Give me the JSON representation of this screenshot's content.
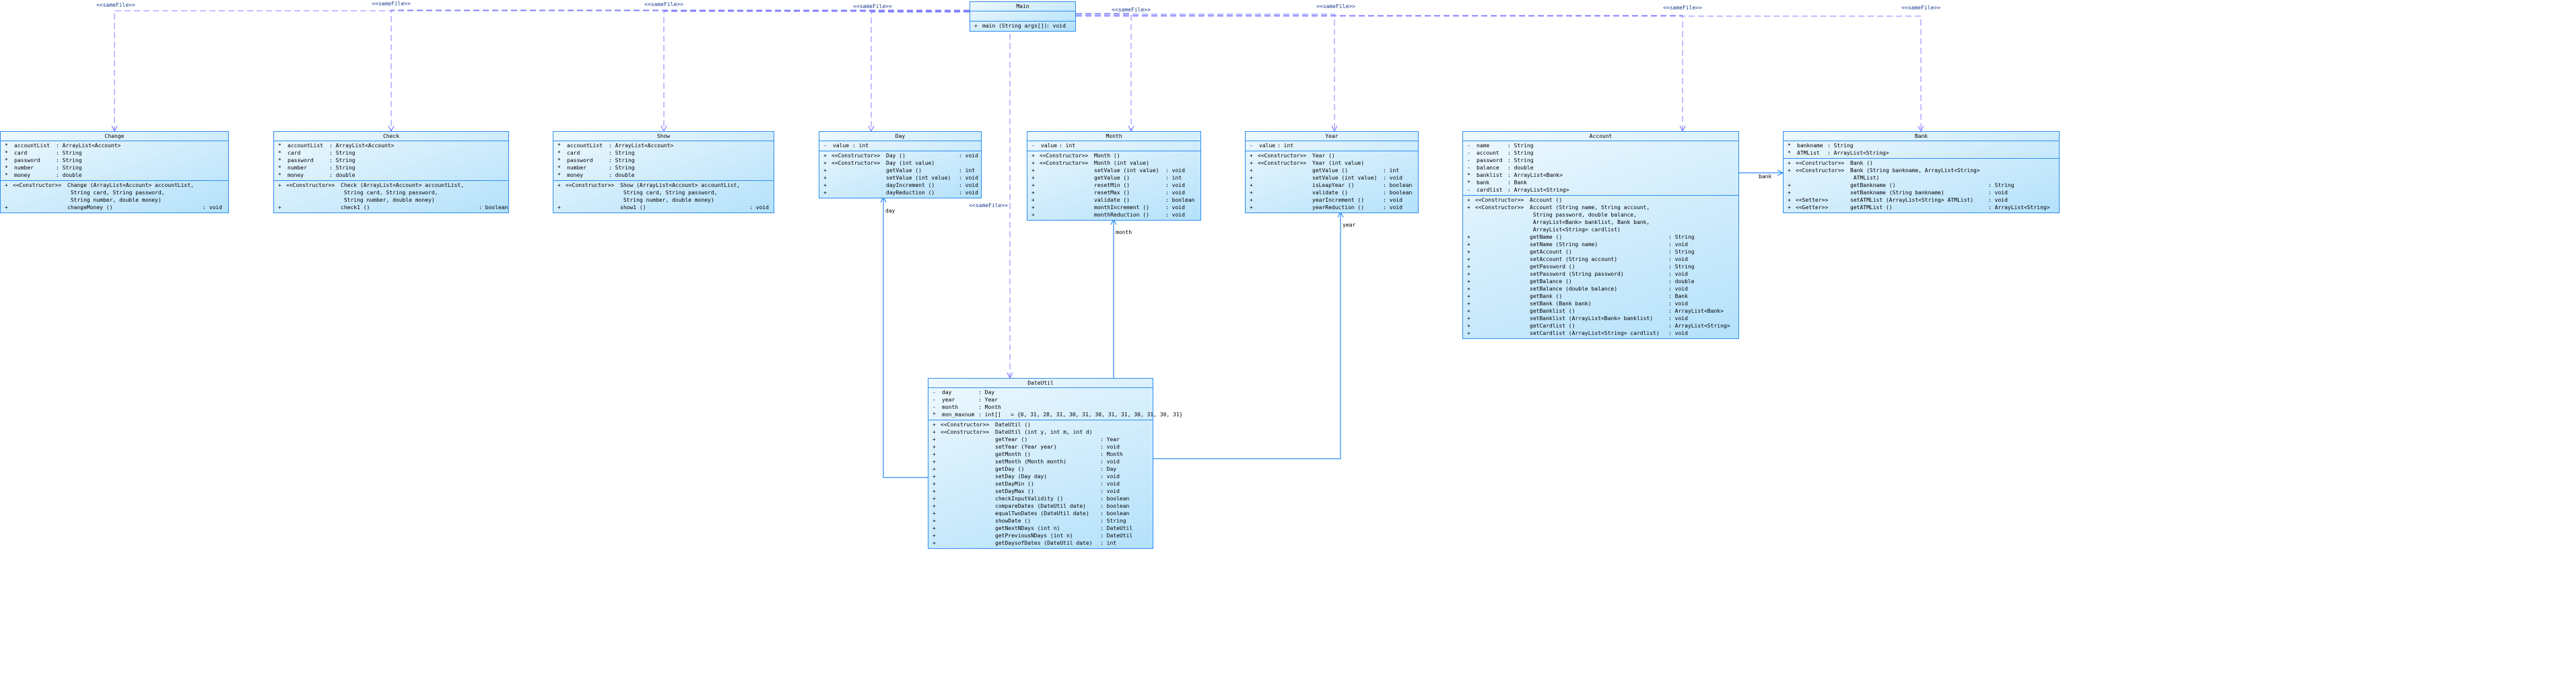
{
  "colors": {
    "border": "#2a8df0",
    "dependency": "#8080ff",
    "association": "#2a8df0",
    "fill_light": "#eef8fe",
    "fill_dark": "#b4e1fb",
    "stereotype_text": "#1a3a8a"
  },
  "relations": {
    "stereotype": "<<sameFile>>",
    "associations": [
      {
        "label": "day"
      },
      {
        "label": "month"
      },
      {
        "label": "year"
      },
      {
        "label": "bank"
      }
    ]
  },
  "classes": [
    {
      "name": "Main",
      "attributes": [],
      "operations": [
        {
          "vis": "+",
          "stereo": "",
          "sig": "main (String args[])",
          "ret": "void"
        }
      ]
    },
    {
      "name": "Change",
      "attributes": [
        {
          "vis": "*",
          "name": "accountList",
          "type": "ArrayList<Account>"
        },
        {
          "vis": "*",
          "name": "card",
          "type": "String"
        },
        {
          "vis": "*",
          "name": "password",
          "type": "String"
        },
        {
          "vis": "*",
          "name": "number",
          "type": "String"
        },
        {
          "vis": "*",
          "name": "money",
          "type": "double"
        }
      ],
      "operations": [
        {
          "vis": "+",
          "stereo": "<<Constructor>>",
          "sig": "Change (ArrayList<Account> accountList,\n String card, String password,\n String number, double money)",
          "ret": ""
        },
        {
          "vis": "+",
          "stereo": "",
          "sig": "changeMoney ()",
          "ret": "void"
        }
      ]
    },
    {
      "name": "Check",
      "attributes": [
        {
          "vis": "*",
          "name": "accountList",
          "type": "ArrayList<Account>"
        },
        {
          "vis": "*",
          "name": "card",
          "type": "String"
        },
        {
          "vis": "*",
          "name": "password",
          "type": "String"
        },
        {
          "vis": "*",
          "name": "number",
          "type": "String"
        },
        {
          "vis": "*",
          "name": "money",
          "type": "double"
        }
      ],
      "operations": [
        {
          "vis": "+",
          "stereo": "<<Constructor>>",
          "sig": "Check (ArrayList<Account> accountList,\n String card, String password,\n String number, double money)",
          "ret": ""
        },
        {
          "vis": "+",
          "stereo": "",
          "sig": "check1 ()",
          "ret": "boolean"
        }
      ]
    },
    {
      "name": "Show",
      "attributes": [
        {
          "vis": "*",
          "name": "accountList",
          "type": "ArrayList<Account>"
        },
        {
          "vis": "*",
          "name": "card",
          "type": "String"
        },
        {
          "vis": "*",
          "name": "password",
          "type": "String"
        },
        {
          "vis": "*",
          "name": "number",
          "type": "String"
        },
        {
          "vis": "*",
          "name": "money",
          "type": "double"
        }
      ],
      "operations": [
        {
          "vis": "+",
          "stereo": "<<Constructor>>",
          "sig": "Show (ArrayList<Account> accountList,\n String card, String password,\n String number, double money)",
          "ret": ""
        },
        {
          "vis": "+",
          "stereo": "",
          "sig": "show1 ()",
          "ret": "void"
        }
      ]
    },
    {
      "name": "Day",
      "attributes": [
        {
          "vis": "-",
          "name": "value",
          "type": "int"
        }
      ],
      "operations": [
        {
          "vis": "+",
          "stereo": "<<Constructor>>",
          "sig": "Day ()",
          "ret": "void"
        },
        {
          "vis": "+",
          "stereo": "<<Constructor>>",
          "sig": "Day (int value)",
          "ret": ""
        },
        {
          "vis": "+",
          "stereo": "",
          "sig": "getValue ()",
          "ret": "int"
        },
        {
          "vis": "+",
          "stereo": "",
          "sig": "setValue (int value)",
          "ret": "void"
        },
        {
          "vis": "+",
          "stereo": "",
          "sig": "dayIncrement ()",
          "ret": "void"
        },
        {
          "vis": "+",
          "stereo": "",
          "sig": "dayReduction ()",
          "ret": "void"
        }
      ]
    },
    {
      "name": "Month",
      "attributes": [
        {
          "vis": "-",
          "name": "value",
          "type": "int"
        }
      ],
      "operations": [
        {
          "vis": "+",
          "stereo": "<<Constructor>>",
          "sig": "Month ()",
          "ret": ""
        },
        {
          "vis": "+",
          "stereo": "<<Constructor>>",
          "sig": "Month (int value)",
          "ret": ""
        },
        {
          "vis": "+",
          "stereo": "",
          "sig": "setValue (int value)",
          "ret": "void"
        },
        {
          "vis": "+",
          "stereo": "",
          "sig": "getValue ()",
          "ret": "int"
        },
        {
          "vis": "+",
          "stereo": "",
          "sig": "resetMin ()",
          "ret": "void"
        },
        {
          "vis": "+",
          "stereo": "",
          "sig": "resetMax ()",
          "ret": "void"
        },
        {
          "vis": "+",
          "stereo": "",
          "sig": "validate ()",
          "ret": "boolean"
        },
        {
          "vis": "+",
          "stereo": "",
          "sig": "monthIncrement ()",
          "ret": "void"
        },
        {
          "vis": "+",
          "stereo": "",
          "sig": "monthReduction ()",
          "ret": "void"
        }
      ]
    },
    {
      "name": "Year",
      "attributes": [
        {
          "vis": "-",
          "name": "value",
          "type": "int"
        }
      ],
      "operations": [
        {
          "vis": "+",
          "stereo": "<<Constructor>>",
          "sig": "Year ()",
          "ret": ""
        },
        {
          "vis": "+",
          "stereo": "<<Constructor>>",
          "sig": "Year (int value)",
          "ret": ""
        },
        {
          "vis": "+",
          "stereo": "",
          "sig": "getValue ()",
          "ret": "int"
        },
        {
          "vis": "+",
          "stereo": "",
          "sig": "setValue (int value)",
          "ret": "void"
        },
        {
          "vis": "+",
          "stereo": "",
          "sig": "isLeapYear ()",
          "ret": "boolean"
        },
        {
          "vis": "+",
          "stereo": "",
          "sig": "validate ()",
          "ret": "boolean"
        },
        {
          "vis": "+",
          "stereo": "",
          "sig": "yearIncrement ()",
          "ret": "void"
        },
        {
          "vis": "+",
          "stereo": "",
          "sig": "yearReduction ()",
          "ret": "void"
        }
      ]
    },
    {
      "name": "Account",
      "attributes": [
        {
          "vis": "-",
          "name": "name",
          "type": "String"
        },
        {
          "vis": "-",
          "name": "account",
          "type": "String"
        },
        {
          "vis": "-",
          "name": "password",
          "type": "String"
        },
        {
          "vis": "-",
          "name": "balance",
          "type": "double"
        },
        {
          "vis": "*",
          "name": "banklist",
          "type": "ArrayList<Bank>"
        },
        {
          "vis": "*",
          "name": "bank",
          "type": "Bank"
        },
        {
          "vis": "-",
          "name": "cardlist",
          "type": "ArrayList<String>"
        }
      ],
      "operations": [
        {
          "vis": "+",
          "stereo": "<<Constructor>>",
          "sig": "Account ()",
          "ret": ""
        },
        {
          "vis": "+",
          "stereo": "<<Constructor>>",
          "sig": "Account (String name, String account,\n String password, double balance,\n ArrayList<Bank> banklist, Bank bank,\n ArrayList<String> cardlist)",
          "ret": ""
        },
        {
          "vis": "+",
          "stereo": "",
          "sig": "getName ()",
          "ret": "String"
        },
        {
          "vis": "+",
          "stereo": "",
          "sig": "setName (String name)",
          "ret": "void"
        },
        {
          "vis": "+",
          "stereo": "",
          "sig": "getAccount ()",
          "ret": "String"
        },
        {
          "vis": "+",
          "stereo": "",
          "sig": "setAccount (String account)",
          "ret": "void"
        },
        {
          "vis": "+",
          "stereo": "",
          "sig": "getPassword ()",
          "ret": "String"
        },
        {
          "vis": "+",
          "stereo": "",
          "sig": "setPassword (String password)",
          "ret": "void"
        },
        {
          "vis": "+",
          "stereo": "",
          "sig": "getBalance ()",
          "ret": "double"
        },
        {
          "vis": "+",
          "stereo": "",
          "sig": "setBalance (double balance)",
          "ret": "void"
        },
        {
          "vis": "+",
          "stereo": "",
          "sig": "getBank ()",
          "ret": "Bank"
        },
        {
          "vis": "+",
          "stereo": "",
          "sig": "setBank (Bank bank)",
          "ret": "void"
        },
        {
          "vis": "+",
          "stereo": "",
          "sig": "getBanklist ()",
          "ret": "ArrayList<Bank>"
        },
        {
          "vis": "+",
          "stereo": "",
          "sig": "setBanklist (ArrayList<Bank> banklist)",
          "ret": "void"
        },
        {
          "vis": "+",
          "stereo": "",
          "sig": "getCardlist ()",
          "ret": "ArrayList<String>"
        },
        {
          "vis": "+",
          "stereo": "",
          "sig": "setCardlist (ArrayList<String> cardlist)",
          "ret": "void"
        }
      ]
    },
    {
      "name": "Bank",
      "attributes": [
        {
          "vis": "*",
          "name": "bankname",
          "type": "String"
        },
        {
          "vis": "*",
          "name": "ATMList",
          "type": "ArrayList<String>"
        }
      ],
      "operations": [
        {
          "vis": "+",
          "stereo": "<<Constructor>>",
          "sig": "Bank ()",
          "ret": ""
        },
        {
          "vis": "+",
          "stereo": "<<Constructor>>",
          "sig": "Bank (String bankname, ArrayList<String>\n ATMList)",
          "ret": ""
        },
        {
          "vis": "+",
          "stereo": "",
          "sig": "getBankname ()",
          "ret": "String"
        },
        {
          "vis": "+",
          "stereo": "",
          "sig": "setBankname (String bankname)",
          "ret": "void"
        },
        {
          "vis": "+",
          "stereo": "<<Setter>>",
          "sig": "setATMList (ArrayList<String> ATMList)",
          "ret": "void"
        },
        {
          "vis": "+",
          "stereo": "<<Getter>>",
          "sig": "getATMList ()",
          "ret": "ArrayList<String>"
        }
      ]
    },
    {
      "name": "DateUtil",
      "attributes": [
        {
          "vis": "-",
          "name": "day",
          "type": "Day"
        },
        {
          "vis": "-",
          "name": "year",
          "type": "Year"
        },
        {
          "vis": "-",
          "name": "month",
          "type": "Month"
        },
        {
          "vis": "*",
          "name": "mon_maxnum",
          "type": "int[]",
          "init": "{0, 31, 28, 31, 30, 31, 30, 31, 31, 30, 31, 30, 31}"
        }
      ],
      "operations": [
        {
          "vis": "+",
          "stereo": "<<Constructor>>",
          "sig": "DateUtil ()",
          "ret": ""
        },
        {
          "vis": "+",
          "stereo": "<<Constructor>>",
          "sig": "DateUtil (int y, int m, int d)",
          "ret": ""
        },
        {
          "vis": "+",
          "stereo": "",
          "sig": "getYear ()",
          "ret": "Year"
        },
        {
          "vis": "+",
          "stereo": "",
          "sig": "setYear (Year year)",
          "ret": "void"
        },
        {
          "vis": "+",
          "stereo": "",
          "sig": "getMonth ()",
          "ret": "Month"
        },
        {
          "vis": "+",
          "stereo": "",
          "sig": "setMonth (Month month)",
          "ret": "void"
        },
        {
          "vis": "+",
          "stereo": "",
          "sig": "getDay ()",
          "ret": "Day"
        },
        {
          "vis": "+",
          "stereo": "",
          "sig": "setDay (Day day)",
          "ret": "void"
        },
        {
          "vis": "+",
          "stereo": "",
          "sig": "setDayMin ()",
          "ret": "void"
        },
        {
          "vis": "+",
          "stereo": "",
          "sig": "setDayMax ()",
          "ret": "void"
        },
        {
          "vis": "+",
          "stereo": "",
          "sig": "checkInputValidity ()",
          "ret": "boolean"
        },
        {
          "vis": "+",
          "stereo": "",
          "sig": "compareDates (DateUtil date)",
          "ret": "boolean"
        },
        {
          "vis": "+",
          "stereo": "",
          "sig": "equalTwoDates (DateUtil date)",
          "ret": "boolean"
        },
        {
          "vis": "+",
          "stereo": "",
          "sig": "showDate ()",
          "ret": "String"
        },
        {
          "vis": "+",
          "stereo": "",
          "sig": "getNextNDays (int n)",
          "ret": "DateUtil"
        },
        {
          "vis": "+",
          "stereo": "",
          "sig": "getPreviousNDays (int n)",
          "ret": "DateUtil"
        },
        {
          "vis": "+",
          "stereo": "",
          "sig": "getDaysofDates (DateUtil date)",
          "ret": "int"
        }
      ]
    }
  ]
}
